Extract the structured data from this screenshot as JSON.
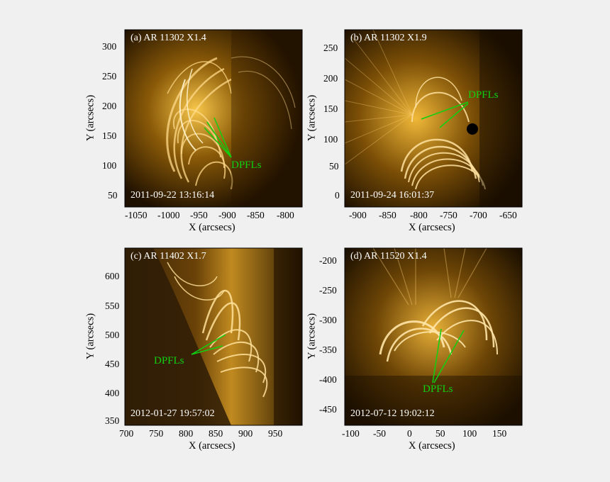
{
  "panels": [
    {
      "id": "a",
      "title": "(a) AR 11302   X1.4",
      "timestamp": "2011-09-22  13:16:14",
      "annotation": "DPFLs",
      "xlabel": "X (arcsecs)",
      "ylabel": "Y (arcsecs)",
      "xticks": [
        "-1050",
        "-1000",
        "-950",
        "-900",
        "-850",
        "-800"
      ],
      "yticks": [
        "300",
        "250",
        "200",
        "150",
        "100",
        "50"
      ]
    },
    {
      "id": "b",
      "title": "(b) AR 11302   X1.9",
      "timestamp": "2011-09-24  16:01:37",
      "annotation": "DPFLs",
      "xlabel": "X (arcsecs)",
      "ylabel": "Y (arcsecs)",
      "xticks": [
        "-900",
        "-850",
        "-800",
        "-750",
        "-700",
        "-650"
      ],
      "yticks": [
        "250",
        "200",
        "150",
        "100",
        "50",
        "0"
      ]
    },
    {
      "id": "c",
      "title": "(c) AR 11402   X1.7",
      "timestamp": "2012-01-27  19:57:02",
      "annotation": "DPFLs",
      "xlabel": "X (arcsecs)",
      "ylabel": "Y (arcsecs)",
      "xticks": [
        "700",
        "750",
        "800",
        "850",
        "900",
        "950"
      ],
      "yticks": [
        "600",
        "550",
        "500",
        "450",
        "400",
        "350"
      ]
    },
    {
      "id": "d",
      "title": "(d) AR 11520   X1.4",
      "timestamp": "2012-07-12  19:02:12",
      "annotation": "DPFLs",
      "xlabel": "X (arcsecs)",
      "ylabel": "Y (arcsecs)",
      "xticks": [
        "-100",
        "-50",
        "0",
        "50",
        "100",
        "150"
      ],
      "yticks": [
        "-200",
        "-250",
        "-300",
        "-350",
        "-400",
        "-450"
      ]
    }
  ],
  "colors": {
    "background": "#f0f0f0",
    "annotation": "#10d010",
    "label": "#ffffff"
  }
}
